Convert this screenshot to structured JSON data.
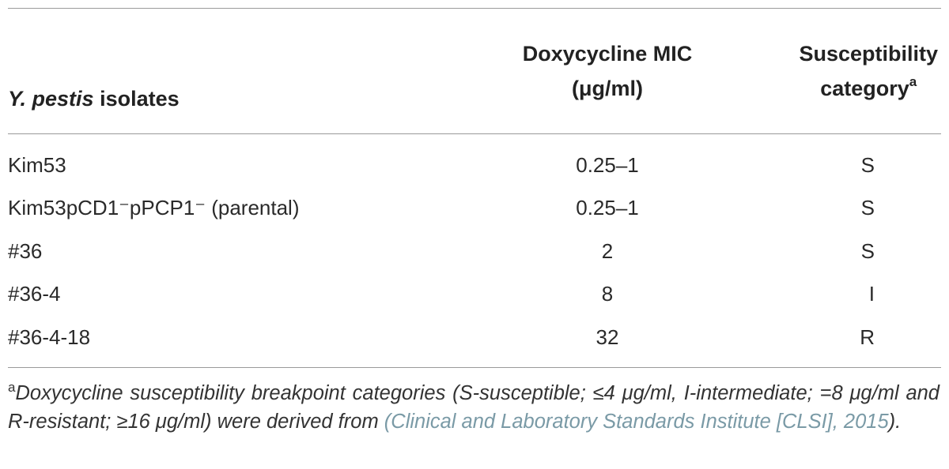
{
  "table": {
    "headers": {
      "isolate_italic": "Y. pestis",
      "isolate_rest": " isolates",
      "mic_line1": "Doxycycline MIC",
      "mic_line2": "(μg/ml)",
      "cat_line1": "Susceptibility",
      "cat_line2": "category",
      "cat_sup": "a"
    },
    "rows": [
      {
        "isolate": "Kim53",
        "mic": "0.25–1",
        "category": "S"
      },
      {
        "isolate": "Kim53pCD1⁻pPCP1⁻ (parental)",
        "mic": "0.25–1",
        "category": "S"
      },
      {
        "isolate": "#36",
        "mic": "2",
        "category": "S"
      },
      {
        "isolate": "#36-4",
        "mic": "8",
        "category": "I"
      },
      {
        "isolate": "#36-4-18",
        "mic": "32",
        "category": "R"
      }
    ]
  },
  "footnote": {
    "marker": "a",
    "text": "Doxycycline susceptibility breakpoint categories (S-susceptible; ≤4 μg/ml, I-intermediate; =8 μg/ml and R-resistant; ≥16 μg/ml) were derived from ",
    "link": "(Clinical and Laboratory Standards Institute [CLSI], 2015",
    "tail": ")."
  }
}
